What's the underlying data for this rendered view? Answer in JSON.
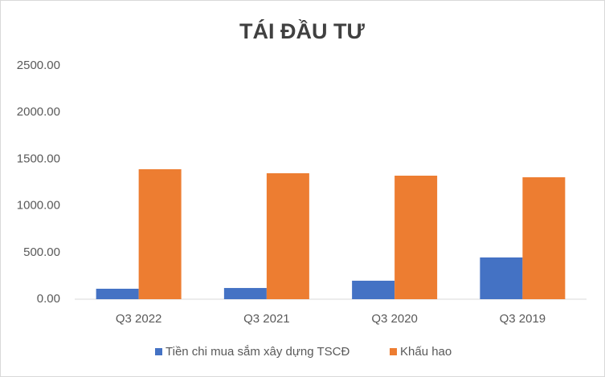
{
  "chart_data": {
    "type": "bar",
    "title": "TÁI ĐẦU TƯ",
    "categories": [
      "Q3 2022",
      "Q3 2021",
      "Q3 2020",
      "Q3 2019"
    ],
    "series": [
      {
        "name": "Tiền chi mua sắm xây dựng TSCĐ",
        "color": "#4472c4",
        "values": [
          112,
          120,
          198,
          447
        ]
      },
      {
        "name": "Khấu hao",
        "color": "#ed7d31",
        "values": [
          1392,
          1349,
          1323,
          1306
        ]
      }
    ],
    "ylim": [
      0,
      2500
    ],
    "yticks": [
      {
        "value": 0,
        "label": "0.00"
      },
      {
        "value": 500,
        "label": "500.00"
      },
      {
        "value": 1000,
        "label": "1000.00"
      },
      {
        "value": 1500,
        "label": "1500.00"
      },
      {
        "value": 2000,
        "label": "2000.00"
      },
      {
        "value": 2500,
        "label": "2500.00"
      }
    ],
    "grid": false,
    "legend": "bottom"
  }
}
